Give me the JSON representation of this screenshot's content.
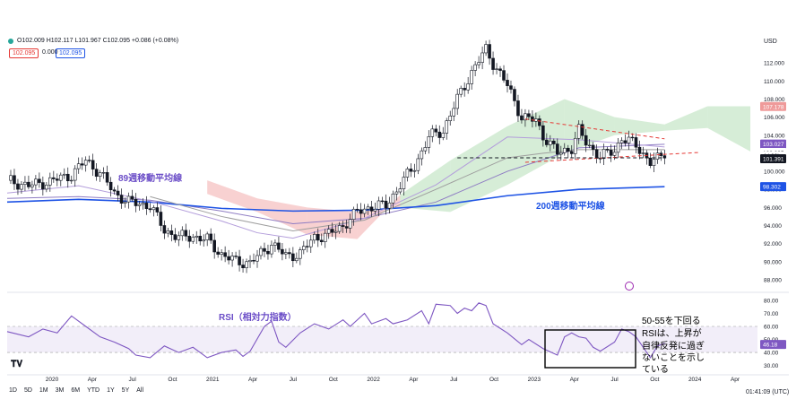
{
  "header": {
    "ohlc_text": "O102.009 H102.117 L101.967 C102.095 +0.086 (+0.08%)",
    "price_box_1": "102.095",
    "price_box_2": "0.000",
    "price_box_3": "102.095",
    "currency": "USD"
  },
  "annotations": {
    "ma89_label": "89週移動平均線",
    "ma200_label": "200週移動平均線",
    "rsi_label": "RSI（相対力指数）",
    "note_lines": [
      "50-55を下回る",
      "RSIは、上昇が",
      "自律反発に過ぎ",
      "ないことを示し",
      "ている"
    ]
  },
  "bottom_bar": {
    "ranges": [
      "1D",
      "5D",
      "1M",
      "3M",
      "6M",
      "YTD",
      "1Y",
      "5Y",
      "All"
    ],
    "clock": "01:41:09 (UTC)"
  },
  "chart_data": {
    "type": "candlestick",
    "price_axis": {
      "ylim": [
        87,
        115
      ],
      "ticks": [
        "88.000",
        "90.000",
        "92.000",
        "94.000",
        "96.000",
        "98.000",
        "100.000",
        "102.000",
        "104.000",
        "106.000",
        "108.000",
        "110.000",
        "112.000"
      ],
      "badges": [
        {
          "label": "107.178",
          "value": 107.178,
          "color": "#ef9a9a"
        },
        {
          "label": "103.027",
          "value": 103.027,
          "color": "#7e57c2"
        },
        {
          "label": "102.095",
          "value": 102.095,
          "color": "#ffffff"
        },
        {
          "label": "4d 22h",
          "value": 101.75,
          "color": "#ffffff"
        },
        {
          "label": "101.391",
          "value": 101.391,
          "color": "#131722"
        },
        {
          "label": "98.302",
          "value": 98.302,
          "color": "#1e53e5"
        }
      ]
    },
    "rsi_axis": {
      "ylim": [
        27,
        82
      ],
      "ticks": [
        "30.00",
        "40.00",
        "50.00",
        "60.00",
        "70.00",
        "80.00"
      ],
      "badge": {
        "label": "46.18",
        "value": 46.18
      },
      "band": [
        40,
        60
      ]
    },
    "time_axis": [
      "2020",
      "Apr",
      "Jul",
      "Oct",
      "2021",
      "Apr",
      "Jul",
      "Oct",
      "2022",
      "Apr",
      "Jul",
      "Oct",
      "2023",
      "Apr",
      "Jul",
      "Oct",
      "2024",
      "Apr"
    ],
    "close_path": [
      [
        0,
        99.0
      ],
      [
        6,
        98.4
      ],
      [
        12,
        98.9
      ],
      [
        18,
        99.6
      ],
      [
        22,
        101.2
      ],
      [
        26,
        99.8
      ],
      [
        30,
        97.6
      ],
      [
        34,
        96.6
      ],
      [
        40,
        96.2
      ],
      [
        44,
        93.5
      ],
      [
        48,
        92.7
      ],
      [
        52,
        92.8
      ],
      [
        56,
        92.4
      ],
      [
        60,
        90.8
      ],
      [
        64,
        90.0
      ],
      [
        68,
        89.9
      ],
      [
        72,
        91.2
      ],
      [
        74,
        92.0
      ],
      [
        78,
        90.6
      ],
      [
        82,
        90.9
      ],
      [
        86,
        92.7
      ],
      [
        90,
        93.0
      ],
      [
        94,
        94.0
      ],
      [
        98,
        95.5
      ],
      [
        102,
        96.1
      ],
      [
        106,
        96.2
      ],
      [
        110,
        98.5
      ],
      [
        114,
        100.6
      ],
      [
        118,
        103.8
      ],
      [
        122,
        104.5
      ],
      [
        126,
        108.0
      ],
      [
        130,
        111.0
      ],
      [
        134,
        113.5
      ],
      [
        136,
        112.0
      ],
      [
        140,
        109.5
      ],
      [
        144,
        106.0
      ],
      [
        148,
        105.6
      ],
      [
        150,
        104.0
      ],
      [
        154,
        102.0
      ],
      [
        158,
        102.6
      ],
      [
        160,
        104.5
      ],
      [
        162,
        103.2
      ],
      [
        166,
        101.6
      ],
      [
        170,
        102.3
      ],
      [
        172,
        103.7
      ],
      [
        176,
        102.9
      ],
      [
        180,
        101.0
      ],
      [
        182,
        101.3
      ],
      [
        184,
        102.1
      ]
    ],
    "series": [
      {
        "name": "89週移動平均線",
        "color": "#8e7cc3",
        "points": [
          [
            0,
            97.0
          ],
          [
            20,
            97.2
          ],
          [
            40,
            96.8
          ],
          [
            60,
            95.6
          ],
          [
            80,
            94.2
          ],
          [
            100,
            94.8
          ],
          [
            120,
            96.6
          ],
          [
            140,
            100.0
          ],
          [
            160,
            102.6
          ],
          [
            184,
            103.0
          ]
        ]
      },
      {
        "name": "200週移動平均線",
        "color": "#1e53e5",
        "points": [
          [
            0,
            96.6
          ],
          [
            20,
            96.9
          ],
          [
            40,
            96.6
          ],
          [
            60,
            95.9
          ],
          [
            80,
            95.6
          ],
          [
            100,
            95.7
          ],
          [
            120,
            96.2
          ],
          [
            140,
            97.3
          ],
          [
            160,
            98.0
          ],
          [
            184,
            98.3
          ]
        ]
      },
      {
        "name": "",
        "color": "#b39ddb",
        "points": [
          [
            0,
            97.6
          ],
          [
            20,
            98.4
          ],
          [
            40,
            96.7
          ],
          [
            60,
            94.5
          ],
          [
            70,
            93.2
          ],
          [
            80,
            92.6
          ],
          [
            100,
            94.8
          ],
          [
            120,
            98.5
          ],
          [
            140,
            103.8
          ],
          [
            160,
            103.5
          ],
          [
            184,
            102.7
          ]
        ]
      },
      {
        "name": "",
        "color": "#9e9e9e",
        "points": [
          [
            40,
            97.2
          ],
          [
            60,
            95.0
          ],
          [
            80,
            93.4
          ],
          [
            100,
            94.6
          ],
          [
            120,
            98.0
          ],
          [
            140,
            101.5
          ],
          [
            150,
            102.0
          ],
          [
            160,
            102.4
          ],
          [
            184,
            102.4
          ]
        ]
      }
    ],
    "cloud": [
      {
        "x": 56,
        "a": 99.0,
        "b": 97.5
      },
      {
        "x": 70,
        "a": 97.0,
        "b": 95.5
      },
      {
        "x": 84,
        "a": 96.0,
        "b": 93.0
      },
      {
        "x": 98,
        "a": 95.5,
        "b": 92.5
      },
      {
        "x": 110,
        "a": 96.0,
        "b": 97.4
      },
      {
        "x": 124,
        "a": 95.5,
        "b": 101.2
      },
      {
        "x": 140,
        "a": 98.5,
        "b": 105.0
      },
      {
        "x": 156,
        "a": 102.0,
        "b": 108.0
      },
      {
        "x": 170,
        "a": 104.0,
        "b": 106.0
      },
      {
        "x": 184,
        "a": 104.5,
        "b": 105.2
      },
      {
        "x": 196,
        "a": 104.8,
        "b": 107.2
      },
      {
        "x": 208,
        "a": 102.2,
        "b": 107.2
      }
    ],
    "trendlines": [
      {
        "color": "#e53935",
        "style": "dashed",
        "points": [
          [
            145,
            105.8
          ],
          [
            184,
            103.6
          ]
        ]
      },
      {
        "color": "#e53935",
        "style": "dashed",
        "points": [
          [
            145,
            101.0
          ],
          [
            194,
            102.1
          ]
        ]
      },
      {
        "color": "#131722",
        "style": "dashed",
        "points": [
          [
            126,
            101.5
          ],
          [
            184,
            101.5
          ]
        ]
      }
    ],
    "rsi_path": [
      [
        0,
        56
      ],
      [
        6,
        52
      ],
      [
        10,
        58
      ],
      [
        14,
        55
      ],
      [
        18,
        68
      ],
      [
        22,
        60
      ],
      [
        26,
        52
      ],
      [
        30,
        48
      ],
      [
        34,
        43
      ],
      [
        36,
        38
      ],
      [
        40,
        36
      ],
      [
        44,
        45
      ],
      [
        48,
        40
      ],
      [
        52,
        44
      ],
      [
        56,
        36
      ],
      [
        60,
        40
      ],
      [
        64,
        42
      ],
      [
        66,
        37
      ],
      [
        68,
        41
      ],
      [
        72,
        60
      ],
      [
        74,
        64
      ],
      [
        76,
        48
      ],
      [
        78,
        44
      ],
      [
        82,
        55
      ],
      [
        86,
        62
      ],
      [
        90,
        58
      ],
      [
        94,
        65
      ],
      [
        96,
        60
      ],
      [
        100,
        70
      ],
      [
        102,
        62
      ],
      [
        106,
        66
      ],
      [
        108,
        62
      ],
      [
        112,
        65
      ],
      [
        116,
        72
      ],
      [
        118,
        62
      ],
      [
        120,
        77
      ],
      [
        124,
        76
      ],
      [
        126,
        70
      ],
      [
        128,
        74
      ],
      [
        130,
        72
      ],
      [
        132,
        78
      ],
      [
        134,
        76
      ],
      [
        136,
        62
      ],
      [
        140,
        55
      ],
      [
        144,
        46
      ],
      [
        146,
        50
      ],
      [
        150,
        43
      ],
      [
        154,
        38
      ],
      [
        156,
        52
      ],
      [
        158,
        55
      ],
      [
        160,
        52
      ],
      [
        162,
        51
      ],
      [
        164,
        44
      ],
      [
        166,
        41
      ],
      [
        170,
        48
      ],
      [
        172,
        58
      ],
      [
        174,
        56
      ],
      [
        176,
        52
      ],
      [
        180,
        36
      ],
      [
        182,
        45
      ],
      [
        184,
        47
      ]
    ]
  }
}
